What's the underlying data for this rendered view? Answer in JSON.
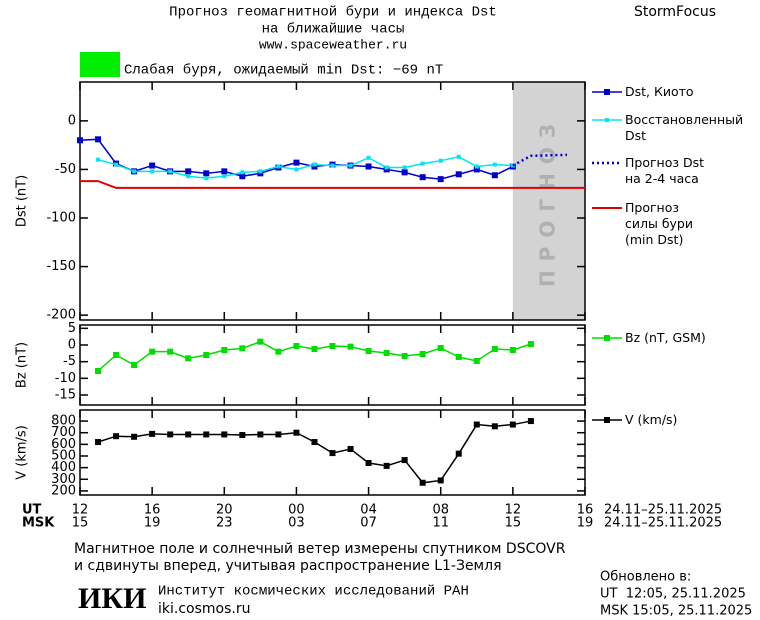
{
  "header": {
    "title": "Прогноз геомагнитной бури и индекса Dst",
    "subtitle": "на ближайшие часы",
    "url": "www.spaceweather.ru",
    "brand": "StormFocus",
    "status": "Слабая буря, ожидаемый min Dst: −69 nT",
    "status_color": "#00ee00"
  },
  "chart_data": [
    {
      "type": "line",
      "ylabel": "Dst (nT)",
      "xlim": [
        0,
        28
      ],
      "ylim": [
        -205,
        40
      ],
      "yticks": [
        0,
        -50,
        -100,
        -150,
        -200
      ],
      "forecast_zone": {
        "x": [
          24,
          28
        ],
        "label": "ПРОГНОЗ",
        "color": "#d3d3d3"
      },
      "series": [
        {
          "name": "Dst, Киото",
          "color": "#0000cc",
          "style": "solid",
          "marker": "square",
          "x": [
            0,
            1,
            2,
            3,
            4,
            5,
            6,
            7,
            8,
            9,
            10,
            11,
            12,
            13,
            14,
            15,
            16,
            17,
            18,
            19,
            20,
            21,
            22,
            23,
            24
          ],
          "values": [
            -20,
            -19,
            -44,
            -52,
            -46,
            -52,
            -52,
            -54,
            -52,
            -57,
            -54,
            -48,
            -43,
            -47,
            -45,
            -46,
            -47,
            -50,
            -53,
            -58,
            -60,
            -55,
            -50,
            -56,
            -47
          ]
        },
        {
          "name": "Восстановленный\nDst",
          "color": "#00e5ee",
          "style": "solid",
          "marker": "small-square",
          "x": [
            1,
            2,
            3,
            4,
            5,
            6,
            7,
            8,
            9,
            10,
            11,
            12,
            13,
            14,
            15,
            16,
            17,
            18,
            19,
            20,
            21,
            22,
            23,
            24
          ],
          "values": [
            -40,
            -45,
            -52,
            -52,
            -52,
            -57,
            -59,
            -57,
            -53,
            -52,
            -47,
            -50,
            -45,
            -46,
            -46,
            -38,
            -48,
            -48,
            -44,
            -41,
            -37,
            -47,
            -45,
            -46
          ]
        },
        {
          "name": "Прогноз Dst\nна 2-4 часа",
          "color": "#0000cc",
          "style": "dotted",
          "marker": "none",
          "x": [
            24,
            25,
            27
          ],
          "values": [
            -46,
            -36,
            -35
          ]
        },
        {
          "name": "Прогноз\nсилы бури\n(min Dst)",
          "color": "#e00000",
          "style": "solid",
          "marker": "none",
          "x": [
            0,
            1,
            2,
            28
          ],
          "values": [
            -62,
            -62,
            -69,
            -69
          ]
        }
      ]
    },
    {
      "type": "line",
      "ylabel": "Bz (nT)",
      "xlim": [
        0,
        28
      ],
      "ylim": [
        -18,
        6
      ],
      "yticks": [
        5,
        0,
        -5,
        -10,
        -15
      ],
      "series": [
        {
          "name": "Bz (nT, GSM)",
          "color": "#00dd00",
          "style": "solid",
          "marker": "square",
          "x": [
            1,
            2,
            3,
            4,
            5,
            6,
            7,
            8,
            9,
            10,
            11,
            12,
            13,
            14,
            15,
            16,
            17,
            18,
            19,
            20,
            21,
            22,
            23,
            24,
            25
          ],
          "values": [
            -7.8,
            -3,
            -6,
            -2,
            -2,
            -4,
            -3,
            -1.5,
            -1,
            1,
            -2,
            -0.3,
            -1.2,
            -0.3,
            -0.5,
            -1.8,
            -2.4,
            -3.3,
            -2.7,
            -0.9,
            -3.6,
            -4.8,
            -1.2,
            -1.5,
            0.3
          ]
        }
      ]
    },
    {
      "type": "line",
      "ylabel": "V (km/s)",
      "xlim": [
        0,
        28
      ],
      "ylim": [
        165,
        895
      ],
      "yticks": [
        200,
        300,
        400,
        500,
        600,
        700,
        800
      ],
      "series": [
        {
          "name": "V (km/s)",
          "color": "#000000",
          "style": "solid",
          "marker": "square",
          "x": [
            1,
            2,
            3,
            4,
            5,
            6,
            7,
            8,
            9,
            10,
            11,
            12,
            13,
            14,
            15,
            16,
            17,
            18,
            19,
            20,
            21,
            22,
            23,
            24,
            25
          ],
          "values": [
            620,
            670,
            665,
            690,
            685,
            685,
            685,
            685,
            680,
            685,
            685,
            700,
            620,
            525,
            560,
            440,
            415,
            465,
            270,
            290,
            520,
            770,
            755,
            770,
            800
          ]
        }
      ],
      "xlabel": "UT",
      "xlabel_msk": "MSK",
      "xticks": [
        {
          "value": 0,
          "label": "12"
        },
        {
          "value": 4,
          "label": "16"
        },
        {
          "value": 8,
          "label": "20"
        },
        {
          "value": 12,
          "label": "00"
        },
        {
          "value": 16,
          "label": "04"
        },
        {
          "value": 20,
          "label": "08"
        },
        {
          "value": 24,
          "label": "12"
        },
        {
          "value": 28,
          "label": "16"
        }
      ],
      "xticks_msk": [
        {
          "value": 0,
          "label": "15"
        },
        {
          "value": 4,
          "label": "19"
        },
        {
          "value": 8,
          "label": "23"
        },
        {
          "value": 12,
          "label": "03"
        },
        {
          "value": 16,
          "label": "07"
        },
        {
          "value": 20,
          "label": "11"
        },
        {
          "value": 24,
          "label": "15"
        },
        {
          "value": 28,
          "label": "19"
        }
      ],
      "date_range": "24.11–25.11.2025",
      "date_range_msk": "24.11–25.11.2025"
    }
  ],
  "footer": {
    "note_line1": "Магнитное поле и солнечный ветер измерены спутником DSCOVR",
    "note_line2": "и сдвинуты вперед, учитывая распространение L1-Земля",
    "logo": "ИКИ",
    "institute": "Институт космических исследований РАН",
    "site": "iki.cosmos.ru",
    "updated_label": "Обновлено в:",
    "updated_ut": "UT  12:05, 25.11.2025",
    "updated_msk": "MSK 15:05, 25.11.2025"
  }
}
